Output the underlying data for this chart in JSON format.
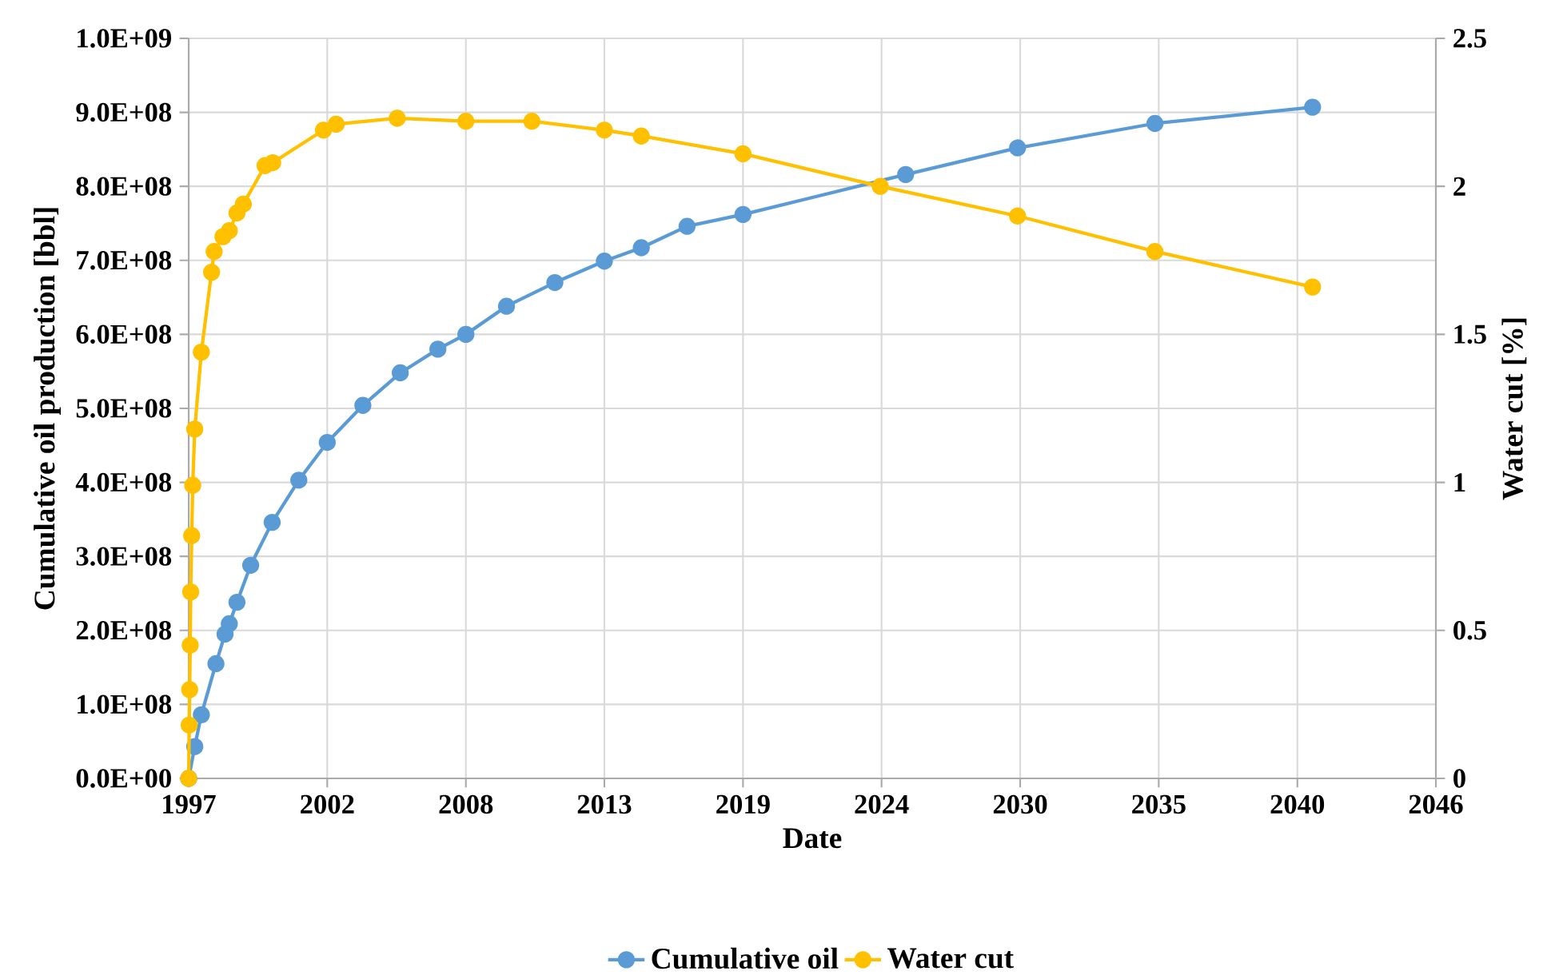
{
  "chart_data": {
    "type": "line",
    "xlabel": "Date",
    "ylabel": "Cumulative oil production [bbl]",
    "y2label": "Water cut [%]",
    "xlim": [
      "1997-04-20",
      "2046-05-08"
    ],
    "xticks": [
      {
        "value": "1997-04-20",
        "label": "1997"
      },
      {
        "value": "2002-10-01",
        "label": "2002"
      },
      {
        "value": "2008-03-14",
        "label": "2008"
      },
      {
        "value": "2013-08-25",
        "label": "2013"
      },
      {
        "value": "2019-02-06",
        "label": "2019"
      },
      {
        "value": "2024-07-19",
        "label": "2024"
      },
      {
        "value": "2030-01-01",
        "label": "2030"
      },
      {
        "value": "2035-06-14",
        "label": "2035"
      },
      {
        "value": "2040-11-25",
        "label": "2040"
      },
      {
        "value": "2046-05-08",
        "label": "2046"
      }
    ],
    "ylim": [
      0,
      1000000000
    ],
    "yticks": [
      {
        "value": 0,
        "label": "0.0E+00"
      },
      {
        "value": 100000000,
        "label": "1.0E+08"
      },
      {
        "value": 200000000,
        "label": "2.0E+08"
      },
      {
        "value": 300000000,
        "label": "3.0E+08"
      },
      {
        "value": 400000000,
        "label": "4.0E+08"
      },
      {
        "value": 500000000,
        "label": "5.0E+08"
      },
      {
        "value": 600000000,
        "label": "6.0E+08"
      },
      {
        "value": 700000000,
        "label": "7.0E+08"
      },
      {
        "value": 800000000,
        "label": "8.0E+08"
      },
      {
        "value": 900000000,
        "label": "9.0E+08"
      },
      {
        "value": 1000000000,
        "label": "1.0E+09"
      }
    ],
    "y2lim": [
      0,
      2.5
    ],
    "y2ticks": [
      0,
      0.5,
      1,
      1.5,
      2,
      2.5
    ],
    "grid": true,
    "legend": "bottom",
    "marker": "circle",
    "series": [
      {
        "name": "Cumulative oil",
        "color": "#5b9bd5",
        "x": [
          "1997-04-20",
          "1997-07-16",
          "1997-10-19",
          "1998-05-16",
          "1998-09-24",
          "1998-11-24",
          "1999-03-14",
          "1999-09-27",
          "2000-07-31",
          "2001-08-19",
          "2002-10-01",
          "2004-02-24",
          "2005-08-15",
          "2007-02-06",
          "2008-03-14",
          "2009-10-19",
          "2011-09-13",
          "2013-08-25",
          "2015-02-06",
          "2016-11-24",
          "2019-02-06",
          "2025-07-01",
          "2029-11-24",
          "2035-04-20",
          "2041-07-02"
        ],
        "values": [
          0,
          43000000,
          86000000,
          155000000,
          195000000,
          209000000,
          238000000,
          288000000,
          346000000,
          403000000,
          454000000,
          504000000,
          548000000,
          580000000,
          600000000,
          638000000,
          670000000,
          699000000,
          717000000,
          746000000,
          762000000,
          816000000,
          852000000,
          885000000,
          907000000
        ]
      },
      {
        "name": "Water cut",
        "color": "#ffc000",
        "axis": "y2",
        "x": [
          "1997-04-20",
          "1997-04-27",
          "1997-05-04",
          "1997-05-12",
          "1997-05-19",
          "1997-06-02",
          "1997-06-17",
          "1997-07-16",
          "1997-10-19",
          "1998-03-14",
          "1998-04-20",
          "1998-08-25",
          "1998-11-24",
          "1999-03-14",
          "1999-06-13",
          "2000-04-20",
          "2000-08-08",
          "2002-08-08",
          "2003-02-06",
          "2005-07-02",
          "2008-03-14",
          "2010-10-19",
          "2013-08-25",
          "2015-02-06",
          "2019-02-06",
          "2024-07-01",
          "2029-11-24",
          "2035-04-20",
          "2041-07-02"
        ],
        "values": [
          0,
          0.18,
          0.3,
          0.45,
          0.63,
          0.82,
          0.99,
          1.18,
          1.44,
          1.71,
          1.78,
          1.83,
          1.85,
          1.91,
          1.94,
          2.07,
          2.08,
          2.19,
          2.21,
          2.23,
          2.22,
          2.22,
          2.19,
          2.17,
          2.11,
          2.0,
          1.9,
          1.78,
          1.66
        ]
      }
    ]
  }
}
